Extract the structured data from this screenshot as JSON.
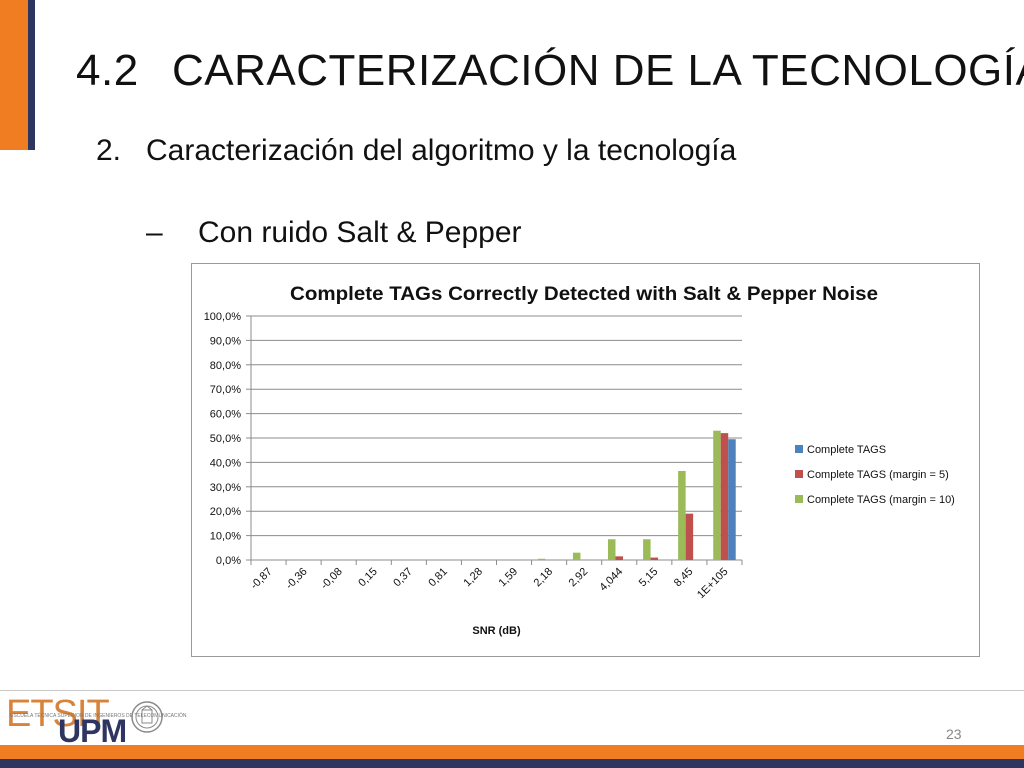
{
  "slide": {
    "title_number": "4.2",
    "title_text": "CARACTERIZACIÓN DE LA TECNOLOGÍA",
    "item_number": "2.",
    "item_text": "Caracterización del algoritmo y la tecnología",
    "sub_dash": "–",
    "sub_text": "Con ruido Salt & Pepper",
    "page_number": "23",
    "colors": {
      "orange": "#f07d22",
      "navy": "#2e3560"
    }
  },
  "footer": {
    "logo_etsit": "ETSIT",
    "logo_upm": "UPM",
    "logo_subtitle": "ESCUELA TÉCNICA SUPERIOR DE INGENIEROS DE TELECOMUNICACIÓN"
  },
  "chart_data": {
    "type": "bar",
    "title": "Complete TAGs Correctly Detected with Salt & Pepper Noise",
    "xlabel": "SNR (dB)",
    "ylabel": "",
    "ylim": [
      0,
      100
    ],
    "yticks": [
      "0,0%",
      "10,0%",
      "20,0%",
      "30,0%",
      "40,0%",
      "50,0%",
      "60,0%",
      "70,0%",
      "80,0%",
      "90,0%",
      "100,0%"
    ],
    "categories": [
      "-0,87",
      "-0,36",
      "-0,08",
      "0,15",
      "0,37",
      "0,81",
      "1,28",
      "1,59",
      "2,18",
      "2,92",
      "4,044",
      "5,15",
      "8,45",
      "1E+105"
    ],
    "series": [
      {
        "name": "Complete TAGS",
        "color": "#4f81bd",
        "values": [
          0,
          0,
          0,
          0,
          0,
          0,
          0,
          0,
          0,
          0,
          0,
          0,
          0,
          49.5
        ]
      },
      {
        "name": "Complete TAGS (margin = 5)",
        "color": "#c0504d",
        "values": [
          0,
          0,
          0,
          0,
          0,
          0,
          0,
          0,
          0,
          0,
          1.5,
          1.0,
          19.0,
          52.0
        ]
      },
      {
        "name": "Complete TAGS (margin = 10)",
        "color": "#9bbb59",
        "values": [
          0,
          0,
          0,
          0,
          0,
          0,
          0,
          0,
          0.5,
          3.0,
          8.5,
          8.5,
          36.5,
          53.0
        ]
      }
    ],
    "grid": true,
    "legend": "right"
  }
}
